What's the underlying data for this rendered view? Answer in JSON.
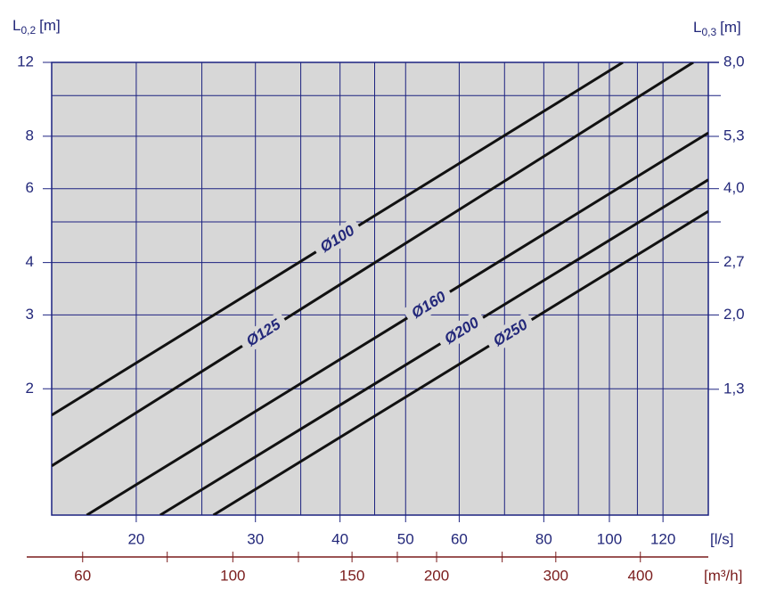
{
  "chart_data": {
    "type": "line",
    "ylabel": [
      "L",
      "0,2",
      "[m]"
    ],
    "y2label": [
      "L",
      "0,3",
      "[m]"
    ],
    "xlabel": "[l/s]",
    "x2label": "[m³/h]",
    "log_x": true,
    "log_y": true,
    "grid": true,
    "background": "#d7d7d7",
    "grid_color": "#1c2280",
    "xlim": [
      15,
      140
    ],
    "xticks": [
      20,
      30,
      40,
      50,
      60,
      80,
      100,
      120
    ],
    "x_minor_grid": [
      25,
      35,
      45,
      70,
      90,
      110
    ],
    "x2lim": [
      54,
      504
    ],
    "x2ticks": [
      60,
      100,
      150,
      200,
      300,
      400
    ],
    "x2_minor_ticks": [
      80,
      125,
      175,
      250
    ],
    "ylim": [
      1,
      12
    ],
    "yticks": [
      2,
      3,
      4,
      6,
      8,
      12
    ],
    "y_minor_grid": [
      5,
      10
    ],
    "y2lim": [
      0.6667,
      8
    ],
    "y2ticks": [
      {
        "value": 1.33,
        "label": "1,3"
      },
      {
        "value": 2,
        "label": "2,0"
      },
      {
        "value": 2.67,
        "label": "2,7"
      },
      {
        "value": 4,
        "label": "4,0"
      },
      {
        "value": 5.33,
        "label": "5,3"
      },
      {
        "value": 8,
        "label": "8,0"
      }
    ],
    "series": [
      {
        "name": "Ø100",
        "color": "#111111",
        "x": [
          15,
          104.7
        ],
        "values": [
          1.73,
          12
        ]
      },
      {
        "name": "Ø125",
        "color": "#111111",
        "x": [
          15,
          133
        ],
        "values": [
          1.31,
          12
        ]
      },
      {
        "name": "Ø160",
        "color": "#111111",
        "x": [
          16.9,
          140
        ],
        "values": [
          1,
          8.15
        ]
      },
      {
        "name": "Ø200",
        "color": "#111111",
        "x": [
          21.7,
          140
        ],
        "values": [
          1,
          6.3
        ]
      },
      {
        "name": "Ø250",
        "color": "#111111",
        "x": [
          26,
          140
        ],
        "values": [
          1,
          5.3
        ]
      }
    ]
  }
}
